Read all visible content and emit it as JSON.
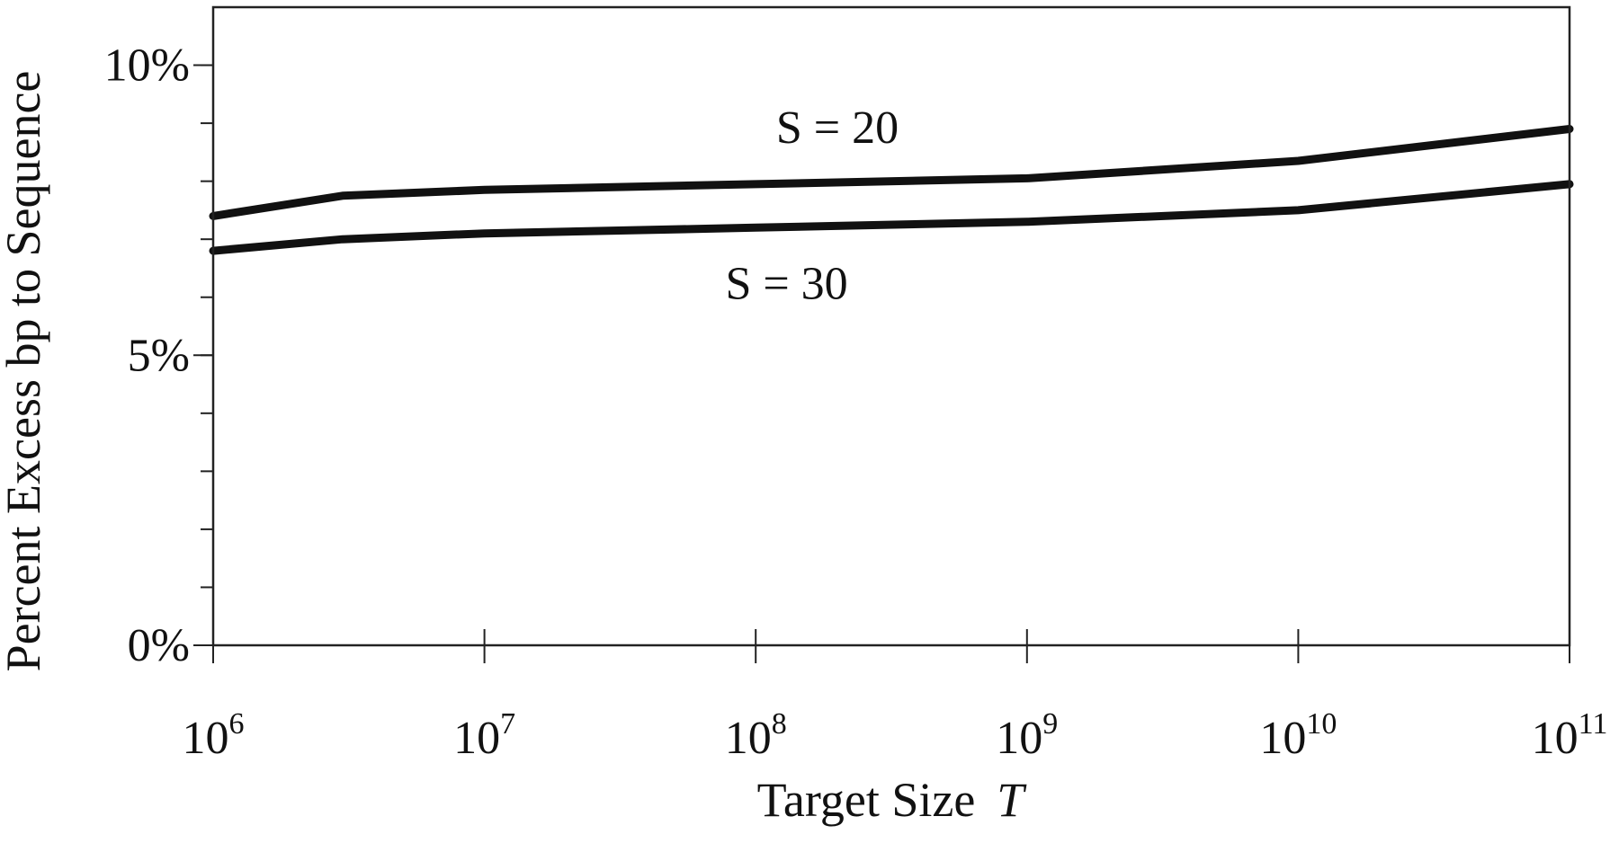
{
  "chart_data": {
    "type": "line",
    "xlabel": "Target Size",
    "xlabel_var": "T",
    "ylabel": "Percent Excess bp to Sequence",
    "x_scale": "log",
    "xlim": [
      1000000,
      100000000000
    ],
    "ylim": [
      0,
      11
    ],
    "grid": false,
    "x_ticks": [
      {
        "value": 1000000,
        "base": "10",
        "exp": "6"
      },
      {
        "value": 10000000,
        "base": "10",
        "exp": "7"
      },
      {
        "value": 100000000,
        "base": "10",
        "exp": "8"
      },
      {
        "value": 1000000000,
        "base": "10",
        "exp": "9"
      },
      {
        "value": 10000000000,
        "base": "10",
        "exp": "10"
      },
      {
        "value": 100000000000,
        "base": "10",
        "exp": "11"
      }
    ],
    "y_ticks": [
      {
        "value": 0,
        "label": "0%"
      },
      {
        "value": 5,
        "label": "5%"
      },
      {
        "value": 10,
        "label": "10%"
      }
    ],
    "y_minor_step": 1,
    "series": [
      {
        "name": "S = 20",
        "x": [
          1000000,
          3000000,
          10000000,
          100000000,
          1000000000,
          10000000000,
          100000000000
        ],
        "y": [
          7.4,
          7.75,
          7.85,
          7.95,
          8.05,
          8.35,
          8.9
        ]
      },
      {
        "name": "S = 30",
        "x": [
          1000000,
          3000000,
          10000000,
          100000000,
          1000000000,
          10000000000,
          100000000000
        ],
        "y": [
          6.8,
          7.0,
          7.1,
          7.2,
          7.3,
          7.5,
          7.95
        ]
      }
    ]
  }
}
